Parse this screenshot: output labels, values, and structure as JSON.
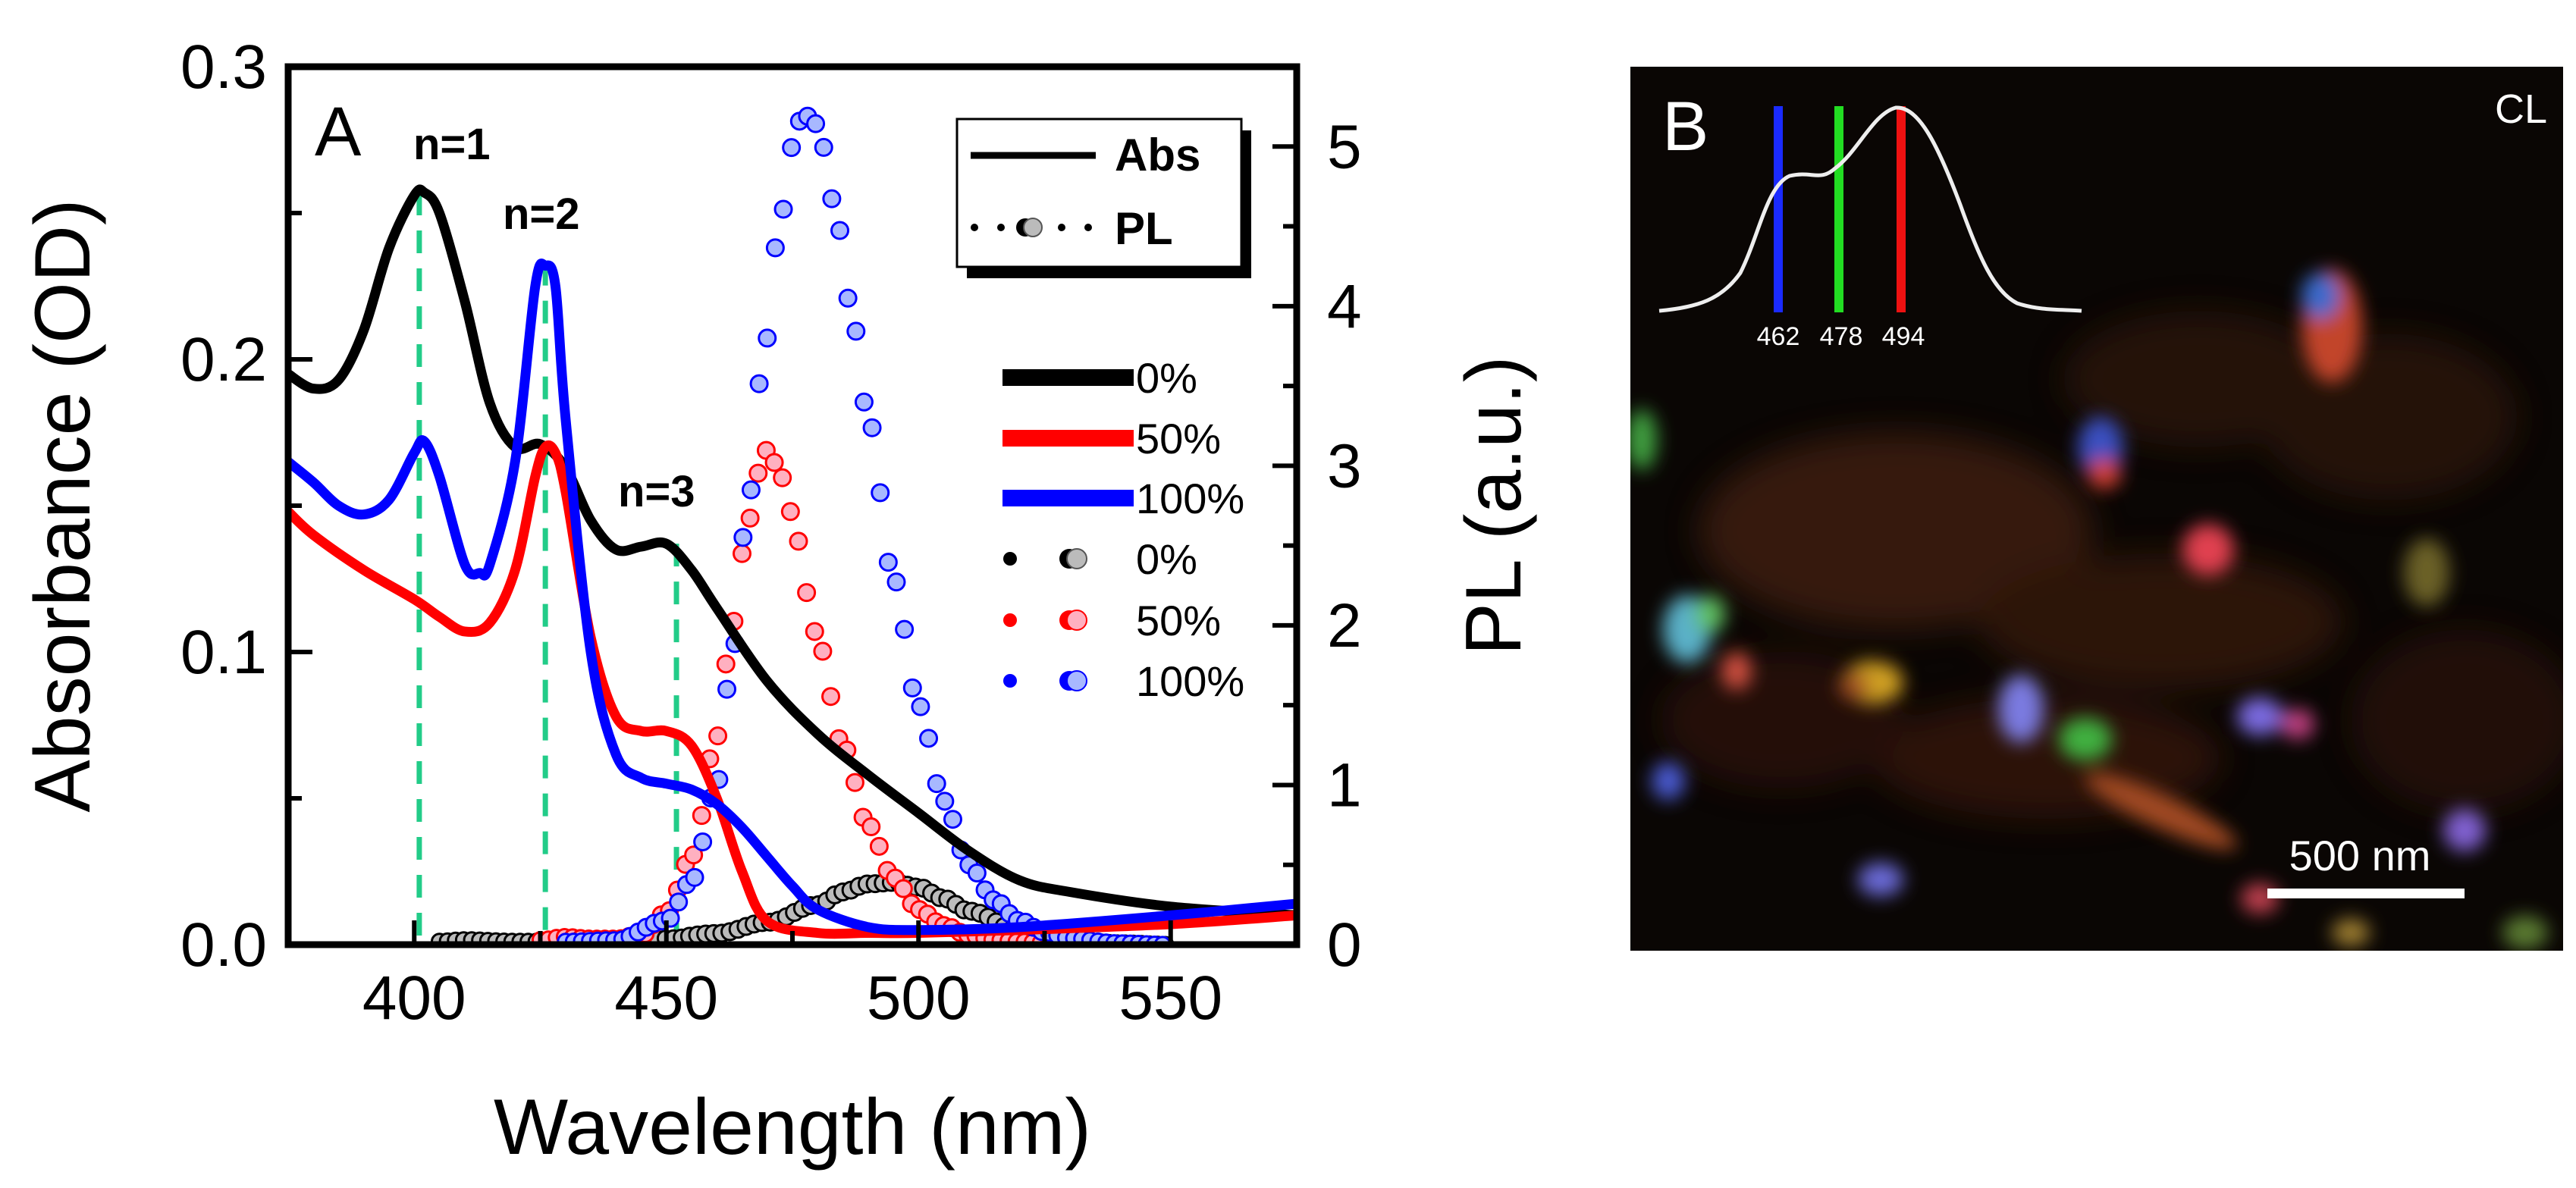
{
  "panel_a": {
    "label": "A",
    "xlabel": "Wavelength (nm)",
    "ylabel_left": "Absorbance (OD)",
    "ylabel_right": "PL (a.u.)",
    "xlim": [
      375,
      575
    ],
    "ylim_left": [
      0,
      0.3
    ],
    "ylim_right": [
      0,
      5.5
    ],
    "xticks": [
      "400",
      "450",
      "500",
      "550"
    ],
    "yticks_left": [
      "0.0",
      "0.1",
      "0.2",
      "0.3"
    ],
    "yticks_right": [
      "0",
      "1",
      "2",
      "3",
      "4",
      "5"
    ],
    "annotations": [
      "n=1",
      "n=2",
      "n=3"
    ],
    "legend_style": {
      "abs": "Abs",
      "pl": "PL"
    },
    "legend_series": {
      "abs": [
        "0%",
        "50%",
        "100%"
      ],
      "pl": [
        "0%",
        "50%",
        "100%"
      ]
    },
    "colors": {
      "s0": "#000000",
      "s50": "#ff0000",
      "s100": "#0000ff",
      "guide": "#22cc88",
      "pl_fill_0": "#bbbbbb",
      "pl_fill_50": "#ffb0c0",
      "pl_fill_100": "#a8b8ff"
    }
  },
  "chart_data": {
    "type": "line",
    "title": "",
    "xlabel": "Wavelength (nm)",
    "ylabel": "Absorbance (OD)",
    "ylabel_secondary": "PL (a.u.)",
    "xlim": [
      375,
      575
    ],
    "ylim": [
      0,
      0.3
    ],
    "ylim_secondary": [
      0,
      5.5
    ],
    "guide_lines_x": [
      401,
      426,
      452
    ],
    "series": [
      {
        "name": "0%",
        "kind": "Abs",
        "axis": "left",
        "x": [
          375,
          380,
          385,
          390,
          395,
          400,
          402,
          405,
          410,
          415,
          420,
          425,
          430,
          435,
          440,
          445,
          450,
          455,
          460,
          470,
          480,
          490,
          500,
          510,
          520,
          530,
          550,
          575
        ],
        "y": [
          0.195,
          0.19,
          0.193,
          0.21,
          0.238,
          0.256,
          0.257,
          0.25,
          0.22,
          0.185,
          0.17,
          0.171,
          0.163,
          0.145,
          0.135,
          0.136,
          0.137,
          0.128,
          0.115,
          0.09,
          0.072,
          0.058,
          0.045,
          0.032,
          0.022,
          0.018,
          0.013,
          0.01
        ]
      },
      {
        "name": "50%",
        "kind": "Abs",
        "axis": "left",
        "x": [
          375,
          380,
          390,
          400,
          405,
          410,
          415,
          420,
          424,
          426,
          428,
          430,
          435,
          440,
          445,
          450,
          455,
          460,
          465,
          470,
          480,
          490,
          500,
          520,
          550,
          575
        ],
        "y": [
          0.148,
          0.14,
          0.128,
          0.118,
          0.112,
          0.107,
          0.11,
          0.128,
          0.16,
          0.17,
          0.168,
          0.155,
          0.105,
          0.078,
          0.073,
          0.073,
          0.068,
          0.05,
          0.025,
          0.008,
          0.004,
          0.004,
          0.004,
          0.005,
          0.007,
          0.01
        ]
      },
      {
        "name": "100%",
        "kind": "Abs",
        "axis": "left",
        "x": [
          375,
          380,
          385,
          390,
          395,
          400,
          402,
          405,
          410,
          413,
          415,
          420,
          424,
          426,
          428,
          430,
          435,
          440,
          445,
          450,
          455,
          460,
          465,
          470,
          475,
          480,
          490,
          500,
          520,
          550,
          575
        ],
        "y": [
          0.165,
          0.158,
          0.15,
          0.147,
          0.152,
          0.168,
          0.172,
          0.16,
          0.13,
          0.127,
          0.13,
          0.165,
          0.225,
          0.232,
          0.225,
          0.18,
          0.1,
          0.065,
          0.057,
          0.055,
          0.053,
          0.048,
          0.04,
          0.03,
          0.02,
          0.012,
          0.006,
          0.005,
          0.006,
          0.01,
          0.014
        ]
      },
      {
        "name": "0%",
        "kind": "PL",
        "axis": "right",
        "x": [
          405,
          410,
          420,
          430,
          440,
          450,
          460,
          470,
          480,
          485,
          490,
          495,
          500,
          505,
          510,
          520,
          530,
          540,
          550
        ],
        "y": [
          0.02,
          0.03,
          0.02,
          0.02,
          0.02,
          0.04,
          0.07,
          0.14,
          0.25,
          0.33,
          0.38,
          0.39,
          0.36,
          0.29,
          0.21,
          0.09,
          0.03,
          0.01,
          0.0
        ]
      },
      {
        "name": "50%",
        "kind": "PL",
        "axis": "right",
        "x": [
          425,
          430,
          435,
          440,
          445,
          450,
          455,
          460,
          463,
          466,
          468,
          470,
          472,
          475,
          478,
          480,
          485,
          490,
          495,
          500,
          505,
          510,
          515,
          520,
          530,
          540
        ],
        "y": [
          0.03,
          0.05,
          0.04,
          0.04,
          0.06,
          0.2,
          0.55,
          1.3,
          2.0,
          2.6,
          2.95,
          3.1,
          3.0,
          2.7,
          2.2,
          1.9,
          1.25,
          0.75,
          0.42,
          0.22,
          0.12,
          0.06,
          0.03,
          0.02,
          0.0,
          0.0
        ]
      },
      {
        "name": "100%",
        "kind": "PL",
        "axis": "right",
        "x": [
          430,
          440,
          450,
          455,
          460,
          463,
          466,
          469,
          472,
          475,
          477,
          479,
          481,
          484,
          487,
          490,
          495,
          500,
          505,
          510,
          515,
          520,
          525,
          530,
          540,
          550
        ],
        "y": [
          0.02,
          0.03,
          0.15,
          0.4,
          1.0,
          1.8,
          2.7,
          3.6,
          4.4,
          5.0,
          5.2,
          5.18,
          5.0,
          4.5,
          3.9,
          3.3,
          2.3,
          1.5,
          0.9,
          0.5,
          0.28,
          0.15,
          0.08,
          0.04,
          0.01,
          0.0
        ]
      }
    ]
  },
  "panel_b": {
    "label": "B",
    "mode_label": "CL",
    "scale_bar": "500 nm",
    "inset_lines": [
      "462",
      "478",
      "494"
    ],
    "inset_colors": [
      "#1a2aff",
      "#22dd22",
      "#ee1111"
    ]
  }
}
